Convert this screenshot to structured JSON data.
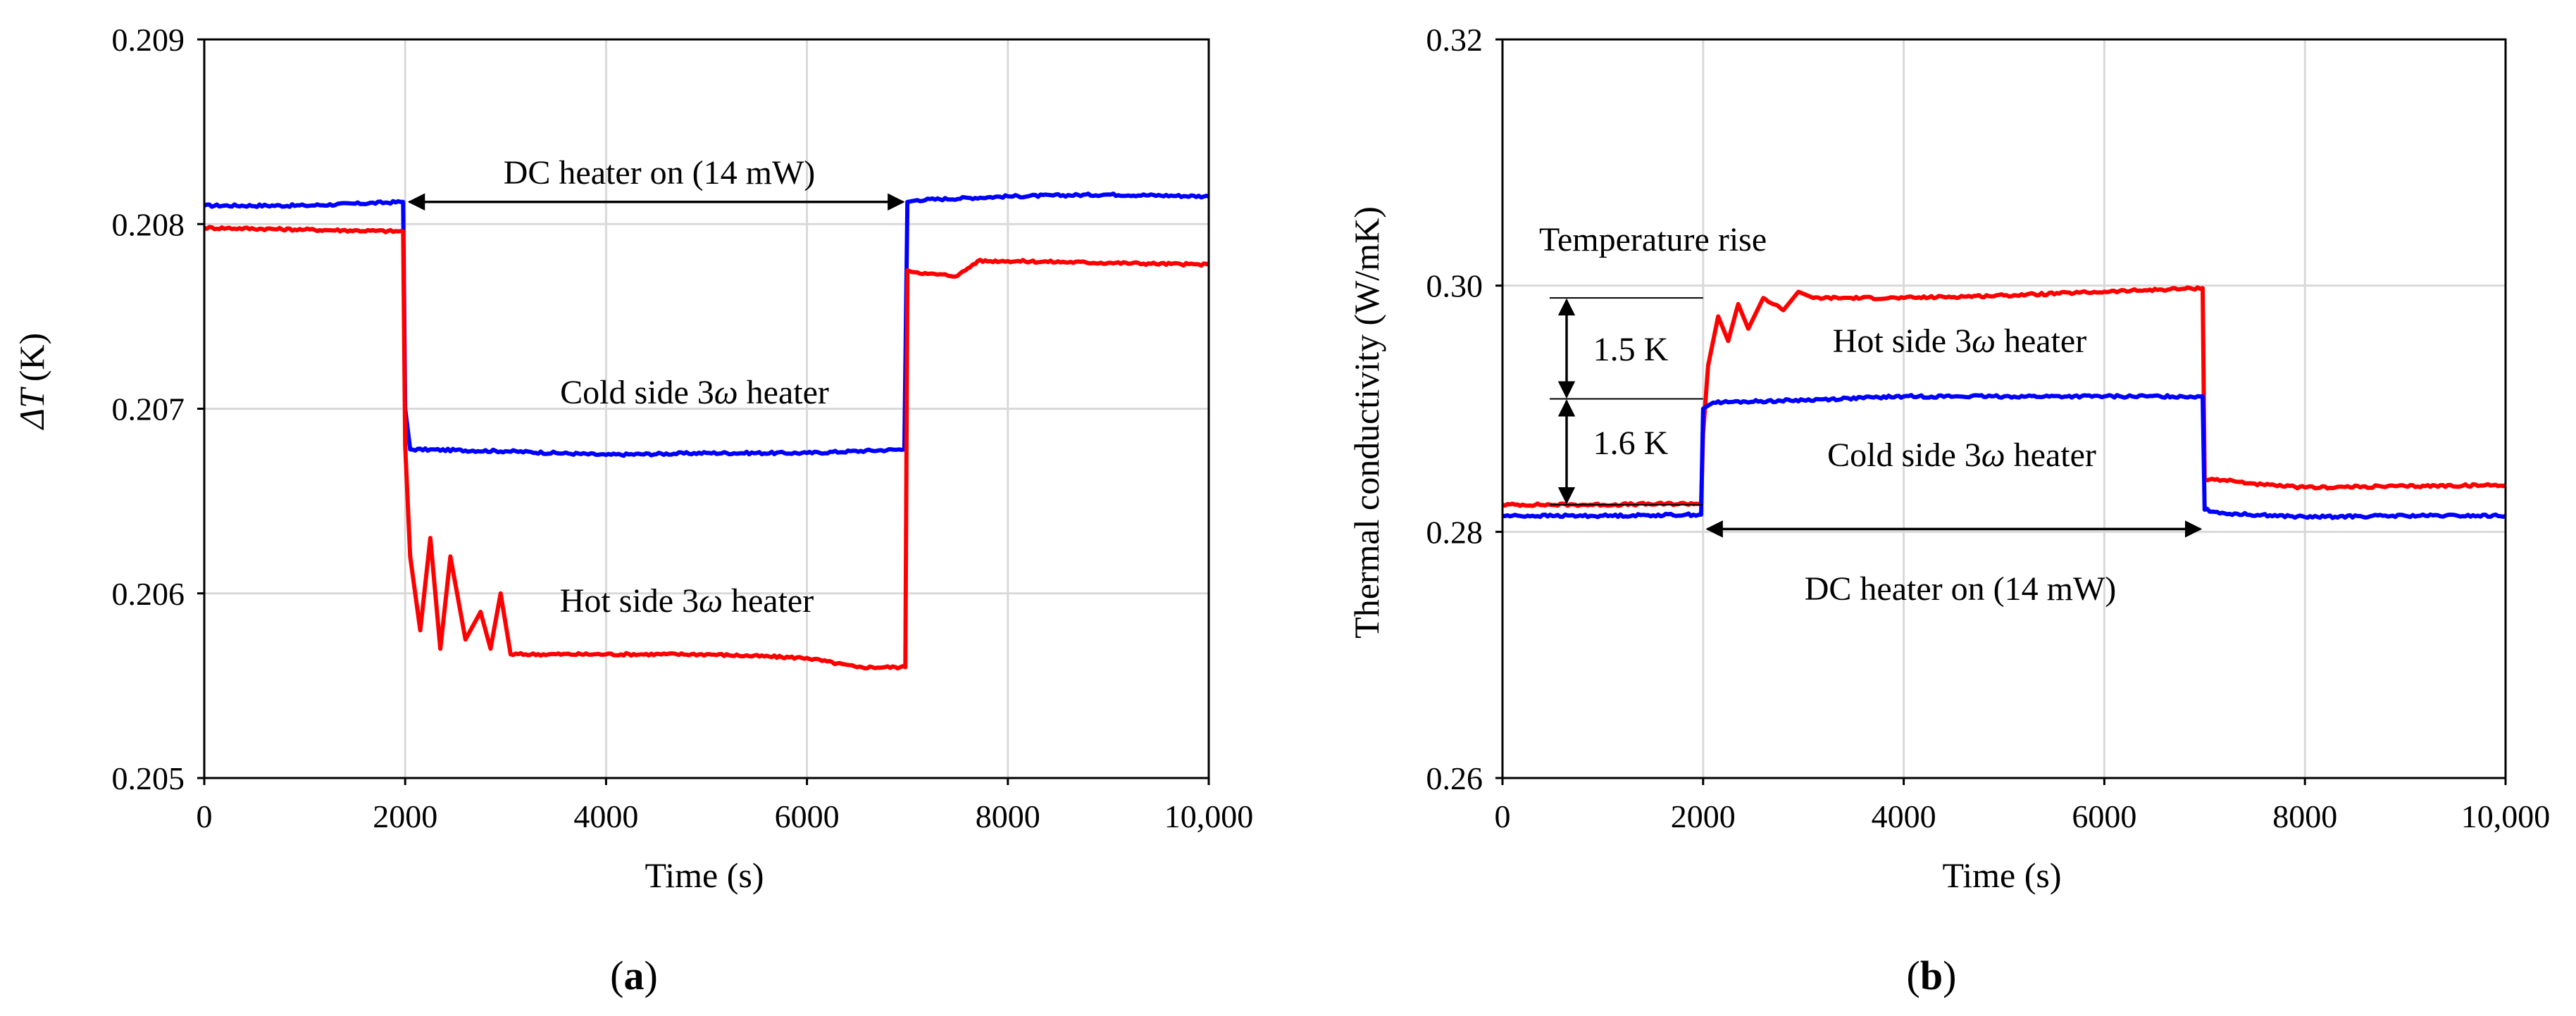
{
  "chart_data": [
    {
      "type": "line",
      "panel_label": "a",
      "xlabel": "Time (s)",
      "ylabel_symbol": "ΔT",
      "ylabel_unit": "(K)",
      "xlim": [
        0,
        10000
      ],
      "ylim": [
        0.205,
        0.209
      ],
      "x_ticks": [
        0,
        2000,
        4000,
        6000,
        8000,
        10000
      ],
      "x_tick_labels": [
        "0",
        "2000",
        "4000",
        "6000",
        "8000",
        "10,000"
      ],
      "y_ticks": [
        0.205,
        0.206,
        0.207,
        0.208,
        0.209
      ],
      "y_tick_labels": [
        "0.205",
        "0.206",
        "0.207",
        "0.208",
        "0.209"
      ],
      "grid": true,
      "series": [
        {
          "name": "Cold side 3ω heater",
          "color": "#0000ff",
          "x": [
            0,
            1000,
            1980,
            2000,
            2050,
            3000,
            4000,
            5000,
            6000,
            6970,
            7000,
            7100,
            8000,
            9000,
            10000
          ],
          "y": [
            0.2081,
            0.2081,
            0.20812,
            0.207,
            0.20678,
            0.20677,
            0.20675,
            0.20676,
            0.20676,
            0.20678,
            0.20812,
            0.20813,
            0.20815,
            0.20816,
            0.20815
          ]
        },
        {
          "name": "Hot side 3ω heater",
          "color": "#ff0000",
          "x": [
            0,
            1000,
            1980,
            2000,
            2050,
            2150,
            2250,
            2350,
            2450,
            2600,
            2750,
            2850,
            2950,
            3050,
            4000,
            5000,
            6000,
            6500,
            6980,
            7000,
            7200,
            7500,
            7700,
            8000,
            9000,
            10000
          ],
          "y": [
            0.20798,
            0.20797,
            0.20796,
            0.2068,
            0.2062,
            0.2058,
            0.2063,
            0.2057,
            0.2062,
            0.20575,
            0.2059,
            0.2057,
            0.206,
            0.20567,
            0.20567,
            0.20567,
            0.20565,
            0.2056,
            0.2056,
            0.20775,
            0.20773,
            0.20772,
            0.2078,
            0.2078,
            0.20779,
            0.20778
          ]
        }
      ],
      "annotations": [
        {
          "text": "DC heater on (14 mW)",
          "x1": 2000,
          "x2": 7000,
          "y": 0.20812
        },
        {
          "text_prefix": "Cold side 3",
          "symbol": "ω",
          "text_suffix": " heater",
          "series": "cold"
        },
        {
          "text_prefix": "Hot side 3",
          "symbol": "ω",
          "text_suffix": " heater",
          "series": "hot"
        }
      ]
    },
    {
      "type": "line",
      "panel_label": "b",
      "xlabel": "Time (s)",
      "ylabel": "Thermal conductivity (W/mK)",
      "xlim": [
        0,
        10000
      ],
      "ylim": [
        0.26,
        0.32
      ],
      "x_ticks": [
        0,
        2000,
        4000,
        6000,
        8000,
        10000
      ],
      "x_tick_labels": [
        "0",
        "2000",
        "4000",
        "6000",
        "8000",
        "10,000"
      ],
      "y_ticks": [
        0.26,
        0.28,
        0.3,
        0.32
      ],
      "y_tick_labels": [
        "0.26",
        "0.28",
        "0.30",
        "0.32"
      ],
      "grid": true,
      "series": [
        {
          "name": "Hot side 3ω heater",
          "color": "#ff0000",
          "x": [
            0,
            1000,
            1980,
            2000,
            2050,
            2150,
            2250,
            2350,
            2450,
            2600,
            2800,
            2950,
            3100,
            4000,
            5000,
            6000,
            6980,
            7000,
            7200,
            7600,
            8000,
            9000,
            10000
          ],
          "y": [
            0.2822,
            0.2822,
            0.2823,
            0.288,
            0.2935,
            0.2975,
            0.2955,
            0.2985,
            0.2965,
            0.299,
            0.298,
            0.2995,
            0.299,
            0.299,
            0.2992,
            0.2995,
            0.2998,
            0.2843,
            0.2842,
            0.2838,
            0.2836,
            0.2837,
            0.2838
          ]
        },
        {
          "name": "Cold side 3ω heater",
          "color": "#0000ff",
          "x": [
            0,
            1000,
            1980,
            2000,
            2100,
            3000,
            4000,
            5000,
            6000,
            6980,
            7000,
            7200,
            8000,
            9000,
            10000
          ],
          "y": [
            0.2813,
            0.2813,
            0.2814,
            0.29,
            0.2905,
            0.2907,
            0.291,
            0.291,
            0.291,
            0.291,
            0.2818,
            0.2815,
            0.2812,
            0.2813,
            0.2813
          ]
        }
      ],
      "annotations": [
        {
          "text": "Temperature rise"
        },
        {
          "text": "1.5 K",
          "y_top": 0.299,
          "y_bottom": 0.2908
        },
        {
          "text": "1.6 K",
          "y_top": 0.2908,
          "y_bottom": 0.2822
        },
        {
          "text_prefix": "Hot side 3",
          "symbol": "ω",
          "text_suffix": " heater",
          "series": "hot"
        },
        {
          "text_prefix": "Cold side 3",
          "symbol": "ω",
          "text_suffix": " heater",
          "series": "cold"
        },
        {
          "text": "DC heater on (14 mW)",
          "x1": 2000,
          "x2": 7000,
          "y": 0.28
        }
      ]
    }
  ]
}
